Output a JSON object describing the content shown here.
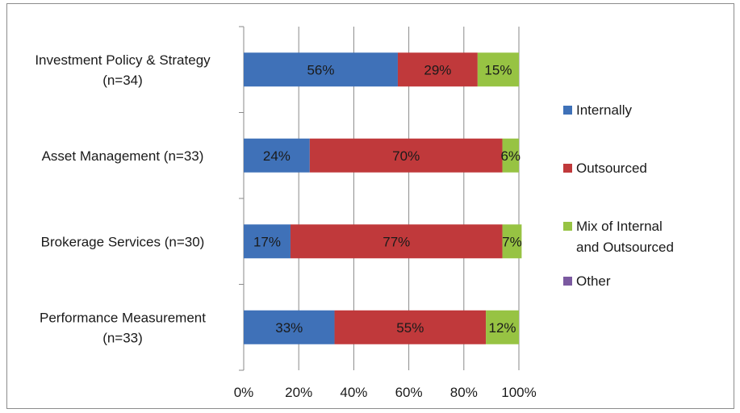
{
  "chart_data": {
    "type": "bar",
    "orientation": "horizontal",
    "stacked": true,
    "categories": [
      [
        "Investment Policy & Strategy",
        "(n=34)"
      ],
      [
        "Asset Management (n=33)"
      ],
      [
        "Brokerage Services (n=30)"
      ],
      [
        "Performance Measurement",
        "(n=33)"
      ]
    ],
    "series": [
      {
        "name": "Internally",
        "color": "#3f71b8",
        "values": [
          56,
          24,
          17,
          33
        ],
        "labels": [
          "56%",
          "24%",
          "17%",
          "33%"
        ]
      },
      {
        "name": "Outsourced",
        "color": "#c0393b",
        "values": [
          29,
          70,
          77,
          55
        ],
        "labels": [
          "29%",
          "70%",
          "77%",
          "55%"
        ]
      },
      {
        "name": "Mix of Internal and Outsourced",
        "color": "#97c343",
        "values": [
          15,
          6,
          7,
          12
        ],
        "labels": [
          "15%",
          "6%",
          "7%",
          "12%"
        ]
      },
      {
        "name": "Other",
        "color": "#7b59a0",
        "values": [
          0,
          0,
          0,
          0
        ],
        "labels": [
          "",
          "",
          "",
          ""
        ]
      }
    ],
    "xlim": [
      0,
      100
    ],
    "xticks": [
      "0%",
      "20%",
      "40%",
      "60%",
      "80%",
      "100%"
    ],
    "grid": true,
    "legend_position": "right"
  }
}
